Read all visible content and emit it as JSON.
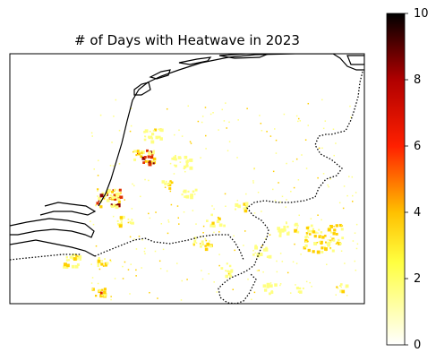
{
  "title": "# of Days with Heatwave in 2023",
  "colorbar": {
    "colormap": "hot_r",
    "min": 0,
    "max": 10,
    "ticks": [
      {
        "value": 0,
        "label": "0"
      },
      {
        "value": 2,
        "label": "2"
      },
      {
        "value": 4,
        "label": "4"
      },
      {
        "value": 6,
        "label": "6"
      },
      {
        "value": 8,
        "label": "8"
      },
      {
        "value": 10,
        "label": "10"
      }
    ]
  },
  "colors": {
    "coastline": "#000000",
    "border": "#000000",
    "low": "#ffff80",
    "mid": "#ffd000",
    "high": "#e03000",
    "max": "#8b0000"
  }
}
